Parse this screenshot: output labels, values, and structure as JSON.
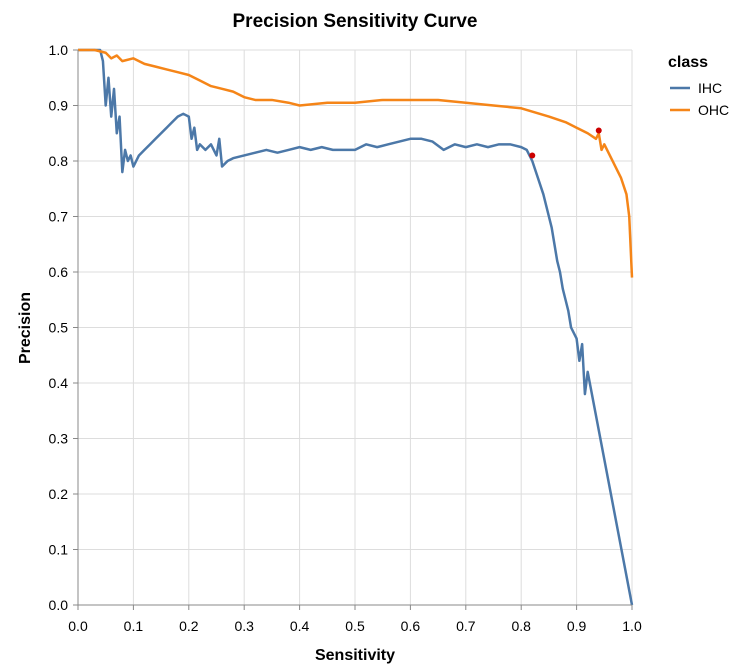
{
  "chart_data": {
    "type": "line",
    "title": "Precision Sensitivity Curve",
    "xlabel": "Sensitivity",
    "ylabel": "Precision",
    "xlim": [
      0,
      1
    ],
    "ylim": [
      0,
      1
    ],
    "x_ticks": [
      "0.0",
      "0.1",
      "0.2",
      "0.3",
      "0.4",
      "0.5",
      "0.6",
      "0.7",
      "0.8",
      "0.9",
      "1.0"
    ],
    "y_ticks": [
      "0.0",
      "0.1",
      "0.2",
      "0.3",
      "0.4",
      "0.5",
      "0.6",
      "0.7",
      "0.8",
      "0.9",
      "1.0"
    ],
    "grid": true,
    "legend": {
      "title": "class",
      "position": "right"
    },
    "series": [
      {
        "name": "IHC",
        "color": "#4c78a8",
        "points": [
          [
            0.0,
            1.0
          ],
          [
            0.04,
            1.0
          ],
          [
            0.045,
            0.98
          ],
          [
            0.05,
            0.9
          ],
          [
            0.055,
            0.95
          ],
          [
            0.06,
            0.88
          ],
          [
            0.065,
            0.93
          ],
          [
            0.07,
            0.85
          ],
          [
            0.075,
            0.88
          ],
          [
            0.08,
            0.78
          ],
          [
            0.085,
            0.82
          ],
          [
            0.09,
            0.8
          ],
          [
            0.095,
            0.81
          ],
          [
            0.1,
            0.79
          ],
          [
            0.105,
            0.8
          ],
          [
            0.11,
            0.81
          ],
          [
            0.12,
            0.82
          ],
          [
            0.13,
            0.83
          ],
          [
            0.14,
            0.84
          ],
          [
            0.15,
            0.85
          ],
          [
            0.16,
            0.86
          ],
          [
            0.17,
            0.87
          ],
          [
            0.18,
            0.88
          ],
          [
            0.19,
            0.885
          ],
          [
            0.2,
            0.88
          ],
          [
            0.205,
            0.84
          ],
          [
            0.21,
            0.86
          ],
          [
            0.215,
            0.82
          ],
          [
            0.22,
            0.83
          ],
          [
            0.23,
            0.82
          ],
          [
            0.24,
            0.83
          ],
          [
            0.25,
            0.81
          ],
          [
            0.255,
            0.84
          ],
          [
            0.26,
            0.79
          ],
          [
            0.27,
            0.8
          ],
          [
            0.28,
            0.805
          ],
          [
            0.3,
            0.81
          ],
          [
            0.32,
            0.815
          ],
          [
            0.34,
            0.82
          ],
          [
            0.36,
            0.815
          ],
          [
            0.38,
            0.82
          ],
          [
            0.4,
            0.825
          ],
          [
            0.42,
            0.82
          ],
          [
            0.44,
            0.825
          ],
          [
            0.46,
            0.82
          ],
          [
            0.5,
            0.82
          ],
          [
            0.52,
            0.83
          ],
          [
            0.54,
            0.825
          ],
          [
            0.56,
            0.83
          ],
          [
            0.58,
            0.835
          ],
          [
            0.6,
            0.84
          ],
          [
            0.62,
            0.84
          ],
          [
            0.64,
            0.835
          ],
          [
            0.66,
            0.82
          ],
          [
            0.68,
            0.83
          ],
          [
            0.7,
            0.825
          ],
          [
            0.72,
            0.83
          ],
          [
            0.74,
            0.825
          ],
          [
            0.76,
            0.83
          ],
          [
            0.78,
            0.83
          ],
          [
            0.8,
            0.825
          ],
          [
            0.81,
            0.82
          ],
          [
            0.82,
            0.8
          ],
          [
            0.83,
            0.77
          ],
          [
            0.84,
            0.74
          ],
          [
            0.85,
            0.7
          ],
          [
            0.855,
            0.68
          ],
          [
            0.86,
            0.65
          ],
          [
            0.865,
            0.62
          ],
          [
            0.87,
            0.6
          ],
          [
            0.875,
            0.57
          ],
          [
            0.88,
            0.55
          ],
          [
            0.885,
            0.53
          ],
          [
            0.89,
            0.5
          ],
          [
            0.9,
            0.48
          ],
          [
            0.905,
            0.44
          ],
          [
            0.91,
            0.47
          ],
          [
            0.915,
            0.38
          ],
          [
            0.92,
            0.42
          ],
          [
            1.0,
            0.0
          ]
        ]
      },
      {
        "name": "OHC",
        "color": "#f58518",
        "points": [
          [
            0.0,
            1.0
          ],
          [
            0.03,
            1.0
          ],
          [
            0.05,
            0.995
          ],
          [
            0.06,
            0.985
          ],
          [
            0.07,
            0.99
          ],
          [
            0.08,
            0.98
          ],
          [
            0.1,
            0.985
          ],
          [
            0.12,
            0.975
          ],
          [
            0.14,
            0.97
          ],
          [
            0.16,
            0.965
          ],
          [
            0.18,
            0.96
          ],
          [
            0.2,
            0.955
          ],
          [
            0.22,
            0.945
          ],
          [
            0.24,
            0.935
          ],
          [
            0.26,
            0.93
          ],
          [
            0.28,
            0.925
          ],
          [
            0.3,
            0.915
          ],
          [
            0.32,
            0.91
          ],
          [
            0.35,
            0.91
          ],
          [
            0.38,
            0.905
          ],
          [
            0.4,
            0.9
          ],
          [
            0.45,
            0.905
          ],
          [
            0.5,
            0.905
          ],
          [
            0.55,
            0.91
          ],
          [
            0.6,
            0.91
          ],
          [
            0.65,
            0.91
          ],
          [
            0.7,
            0.905
          ],
          [
            0.75,
            0.9
          ],
          [
            0.8,
            0.895
          ],
          [
            0.85,
            0.88
          ],
          [
            0.88,
            0.87
          ],
          [
            0.9,
            0.86
          ],
          [
            0.92,
            0.85
          ],
          [
            0.935,
            0.84
          ],
          [
            0.94,
            0.85
          ],
          [
            0.945,
            0.82
          ],
          [
            0.95,
            0.83
          ],
          [
            0.96,
            0.81
          ],
          [
            0.97,
            0.79
          ],
          [
            0.98,
            0.77
          ],
          [
            0.99,
            0.74
          ],
          [
            0.995,
            0.7
          ],
          [
            1.0,
            0.59
          ]
        ]
      }
    ],
    "markers": [
      {
        "x": 0.82,
        "y": 0.81,
        "color": "#cc0000"
      },
      {
        "x": 0.94,
        "y": 0.855,
        "color": "#cc0000"
      }
    ]
  }
}
